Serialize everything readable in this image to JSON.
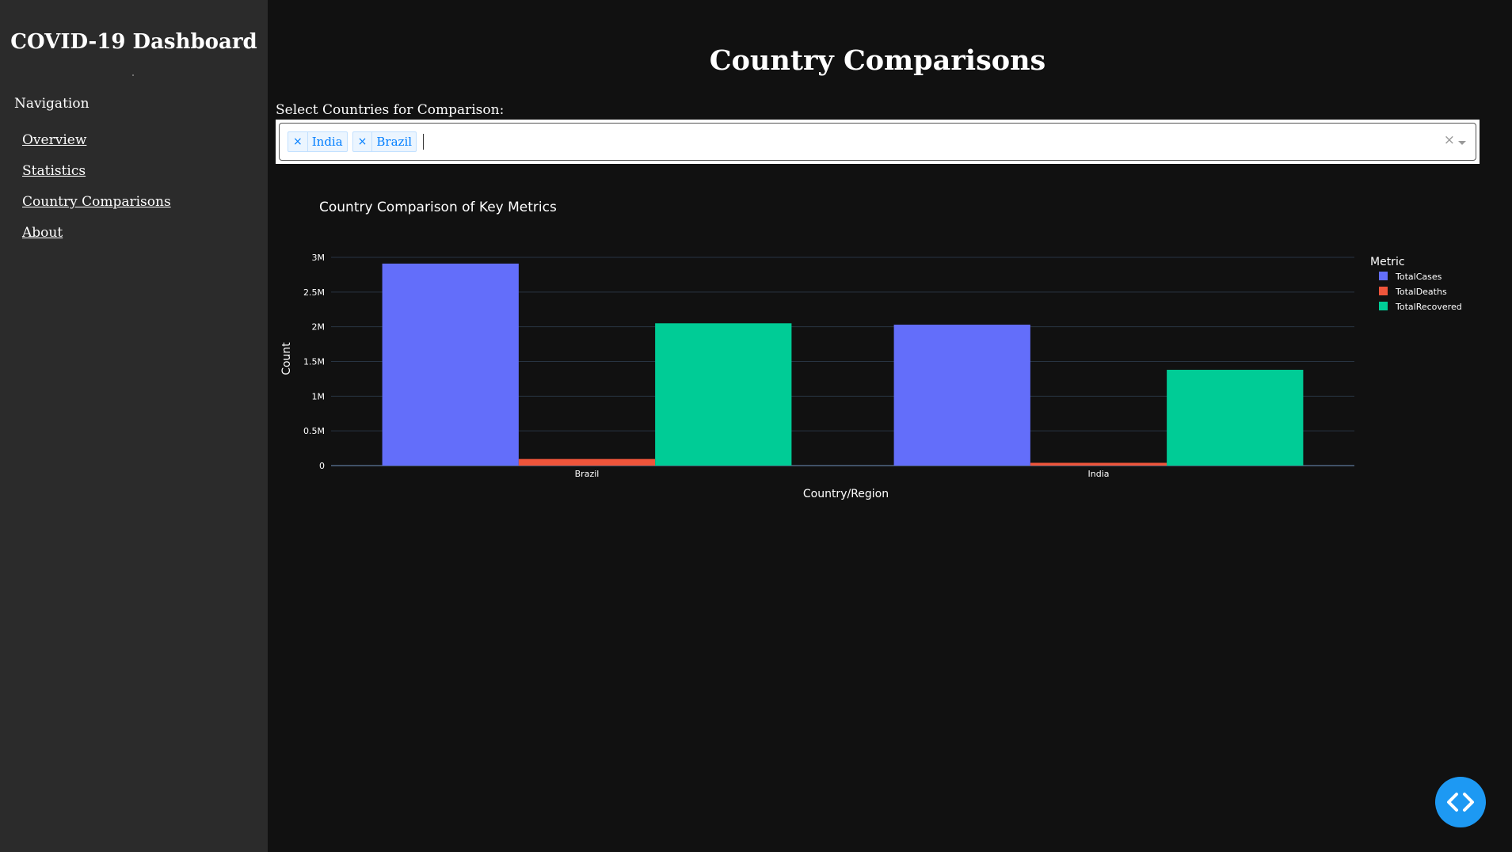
{
  "sidebar": {
    "title": "COVID-19 Dashboard",
    "dot": ".",
    "nav_heading": "Navigation",
    "links": [
      "Overview",
      "Statistics",
      "Country Comparisons",
      "About"
    ]
  },
  "main": {
    "page_title": "Country Comparisons",
    "select_label": "Select Countries for Comparison:",
    "selected_countries": [
      "India",
      "Brazil"
    ],
    "tag_remove_glyph": "×",
    "clear_glyph": "×"
  },
  "chart_data": {
    "type": "bar",
    "title": "Country Comparison of Key Metrics",
    "xlabel": "Country/Region",
    "ylabel": "Count",
    "categories": [
      "Brazil",
      "India"
    ],
    "series": [
      {
        "name": "TotalCases",
        "color": "#636efa",
        "values": [
          2910000,
          2030000
        ]
      },
      {
        "name": "TotalDeaths",
        "color": "#ef553b",
        "values": [
          95000,
          40000
        ]
      },
      {
        "name": "TotalRecovered",
        "color": "#00cc96",
        "values": [
          2050000,
          1380000
        ]
      }
    ],
    "ylim": [
      0,
      3000000
    ],
    "yticks": [
      0,
      500000,
      1000000,
      1500000,
      2000000,
      2500000,
      3000000
    ],
    "ytick_labels": [
      "0",
      "0.5M",
      "1M",
      "1.5M",
      "2M",
      "2.5M",
      "3M"
    ],
    "legend_title": "Metric",
    "legend_position": "top-right",
    "grid": true
  }
}
